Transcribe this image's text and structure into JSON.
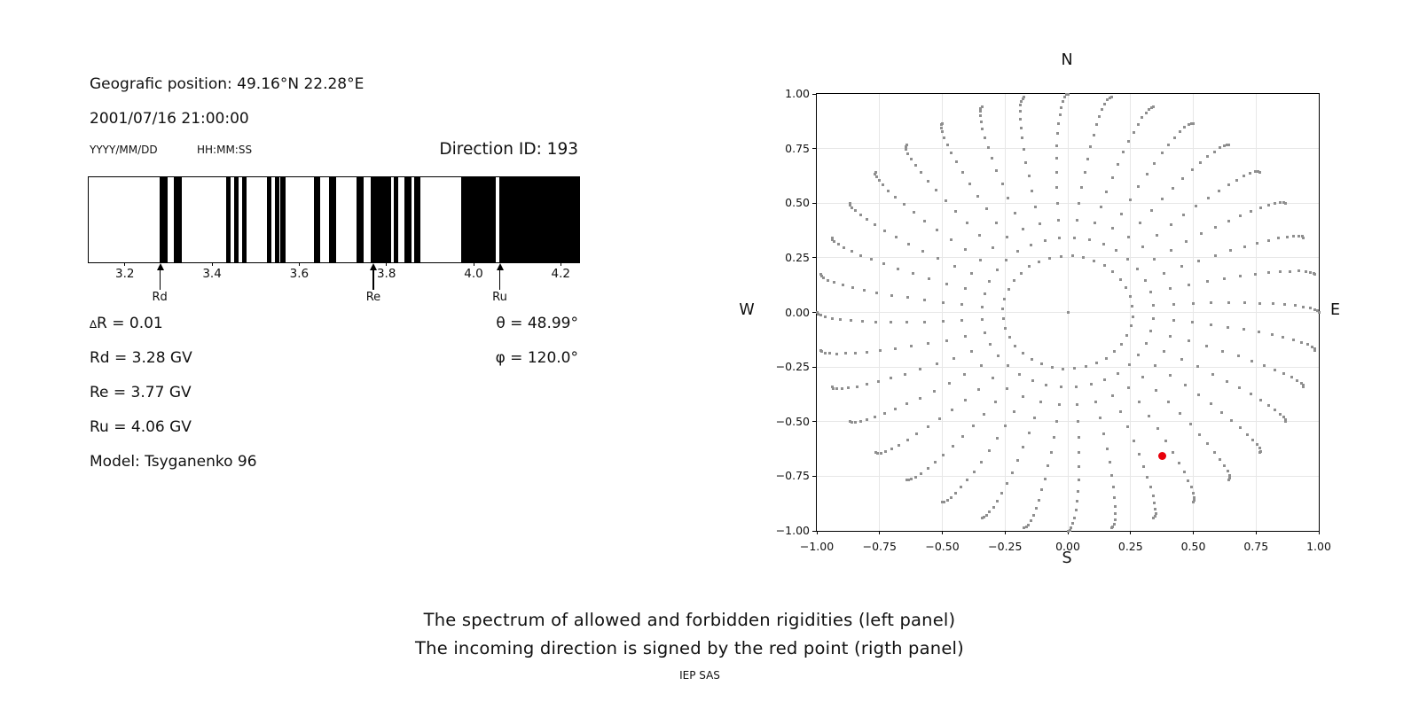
{
  "header": {
    "geo_position": "Geografic position: 49.16°N 22.28°E",
    "datetime": "2001/07/16 21:00:00",
    "date_format": "YYYY/MM/DD",
    "time_format": "HH:MM:SS",
    "direction_id": "Direction ID: 193"
  },
  "params": {
    "delta_symbol": "∆",
    "delta_r_rest": "R = 0.01",
    "rd": "Rd = 3.28 GV",
    "re": "Re = 3.77 GV",
    "ru": "Ru = 4.06 GV",
    "model": "Model: Tsyganenko 96",
    "theta": "θ = 48.99°",
    "phi": "φ = 120.0°"
  },
  "chart_data": [
    {
      "type": "bar",
      "subtype": "rigidity-barcode-spectrum",
      "description": "Allowed (black) and forbidden (white) rigidity bands in GV",
      "xlim": [
        3.115,
        4.24
      ],
      "xticks": [
        3.2,
        3.4,
        3.6,
        3.8,
        4.0,
        4.2
      ],
      "xtick_labels": [
        "3.2",
        "3.4",
        "3.6",
        "3.8",
        "4.0",
        "4.2"
      ],
      "allowed_intervals_gv": [
        [
          3.278,
          3.297
        ],
        [
          3.31,
          3.328
        ],
        [
          3.43,
          3.441
        ],
        [
          3.449,
          3.458
        ],
        [
          3.466,
          3.477
        ],
        [
          3.524,
          3.535
        ],
        [
          3.543,
          3.553
        ],
        [
          3.555,
          3.566
        ],
        [
          3.631,
          3.647
        ],
        [
          3.666,
          3.682
        ],
        [
          3.73,
          3.746
        ],
        [
          3.762,
          3.808
        ],
        [
          3.815,
          3.826
        ],
        [
          3.84,
          3.855
        ],
        [
          3.861,
          3.875
        ],
        [
          3.969,
          4.048
        ],
        [
          4.057,
          4.24
        ]
      ],
      "bar_color": "#000000",
      "markers": [
        {
          "label": "Rd",
          "value_gv": 3.28
        },
        {
          "label": "Re",
          "value_gv": 3.77
        },
        {
          "label": "Ru",
          "value_gv": 4.06
        }
      ]
    },
    {
      "type": "scatter",
      "subtype": "incoming-direction-map",
      "xlim": [
        -1,
        1
      ],
      "ylim": [
        -1,
        1
      ],
      "grid": true,
      "ticks": [
        -1,
        -0.75,
        -0.5,
        -0.25,
        0,
        0.25,
        0.5,
        0.75,
        1
      ],
      "tick_labels": [
        "−1.00",
        "−0.75",
        "−0.50",
        "−0.25",
        "0.00",
        "0.25",
        "0.50",
        "0.75",
        "1.00"
      ],
      "compass_labels": {
        "top": "N",
        "bottom": "S",
        "left": "W",
        "right": "E"
      },
      "dot_color": "#8f8f8f",
      "direction_grid": {
        "azimuth_count": 36,
        "azimuth_step_deg": 10,
        "zenith_min_deg": 15,
        "zenith_max_deg": 90,
        "zenith_step_deg": 5,
        "radius_rule": "sin(zenith)",
        "spiral_drift_deg": 6,
        "center_dot": true
      },
      "red_point": {
        "x": 0.375,
        "y": -0.655,
        "color": "#e8000b"
      }
    }
  ],
  "caption": {
    "line1": "The spectrum of allowed and forbidden rigidities (left panel)",
    "line2": "The incoming direction is signed by the red point (rigth panel)",
    "credit": "IEP SAS"
  }
}
